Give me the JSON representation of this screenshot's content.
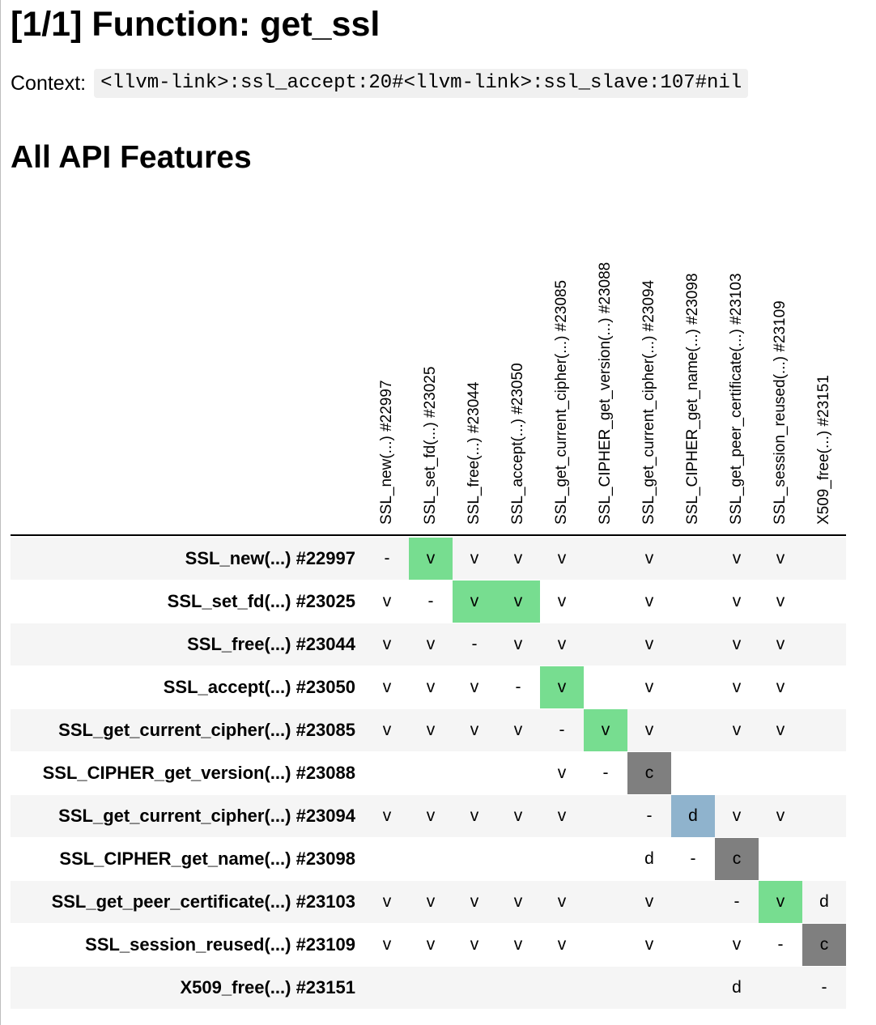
{
  "title": "[1/1] Function: get_ssl",
  "context": {
    "label": "Context:",
    "value": "<llvm-link>:ssl_accept:20#<llvm-link>:ssl_slave:107#nil"
  },
  "section_title": "All API Features",
  "columns": [
    "SSL_new(...) #22997",
    "SSL_set_fd(...) #23025",
    "SSL_free(...) #23044",
    "SSL_accept(...) #23050",
    "SSL_get_current_cipher(...) #23085",
    "SSL_CIPHER_get_version(...) #23088",
    "SSL_get_current_cipher(...) #23094",
    "SSL_CIPHER_get_name(...) #23098",
    "SSL_get_peer_certificate(...) #23103",
    "SSL_session_reused(...) #23109",
    "X509_free(...) #23151"
  ],
  "rows": [
    {
      "label": "SSL_new(...) #22997",
      "cells": [
        "-",
        "v",
        "v",
        "v",
        "v",
        "",
        "v",
        "",
        "v",
        "v",
        ""
      ],
      "highlight": [
        "",
        "green",
        "",
        "",
        "",
        "",
        "",
        "",
        "",
        "",
        ""
      ]
    },
    {
      "label": "SSL_set_fd(...) #23025",
      "cells": [
        "v",
        "-",
        "v",
        "v",
        "v",
        "",
        "v",
        "",
        "v",
        "v",
        ""
      ],
      "highlight": [
        "",
        "",
        "green",
        "green",
        "",
        "",
        "",
        "",
        "",
        "",
        ""
      ]
    },
    {
      "label": "SSL_free(...) #23044",
      "cells": [
        "v",
        "v",
        "-",
        "v",
        "v",
        "",
        "v",
        "",
        "v",
        "v",
        ""
      ],
      "highlight": [
        "",
        "",
        "",
        "",
        "",
        "",
        "",
        "",
        "",
        "",
        ""
      ]
    },
    {
      "label": "SSL_accept(...) #23050",
      "cells": [
        "v",
        "v",
        "v",
        "-",
        "v",
        "",
        "v",
        "",
        "v",
        "v",
        ""
      ],
      "highlight": [
        "",
        "",
        "",
        "",
        "green",
        "",
        "",
        "",
        "",
        "",
        ""
      ]
    },
    {
      "label": "SSL_get_current_cipher(...) #23085",
      "cells": [
        "v",
        "v",
        "v",
        "v",
        "-",
        "v",
        "v",
        "",
        "v",
        "v",
        ""
      ],
      "highlight": [
        "",
        "",
        "",
        "",
        "",
        "green",
        "",
        "",
        "",
        "",
        ""
      ]
    },
    {
      "label": "SSL_CIPHER_get_version(...) #23088",
      "cells": [
        "",
        "",
        "",
        "",
        "v",
        "-",
        "c",
        "",
        "",
        "",
        ""
      ],
      "highlight": [
        "",
        "",
        "",
        "",
        "",
        "",
        "gray",
        "",
        "",
        "",
        ""
      ]
    },
    {
      "label": "SSL_get_current_cipher(...) #23094",
      "cells": [
        "v",
        "v",
        "v",
        "v",
        "v",
        "",
        "-",
        "d",
        "v",
        "v",
        ""
      ],
      "highlight": [
        "",
        "",
        "",
        "",
        "",
        "",
        "",
        "blue",
        "",
        "",
        ""
      ]
    },
    {
      "label": "SSL_CIPHER_get_name(...) #23098",
      "cells": [
        "",
        "",
        "",
        "",
        "",
        "",
        "d",
        "-",
        "c",
        "",
        ""
      ],
      "highlight": [
        "",
        "",
        "",
        "",
        "",
        "",
        "",
        "",
        "gray",
        "",
        ""
      ]
    },
    {
      "label": "SSL_get_peer_certificate(...) #23103",
      "cells": [
        "v",
        "v",
        "v",
        "v",
        "v",
        "",
        "v",
        "",
        "-",
        "v",
        "d"
      ],
      "highlight": [
        "",
        "",
        "",
        "",
        "",
        "",
        "",
        "",
        "",
        "green",
        ""
      ]
    },
    {
      "label": "SSL_session_reused(...) #23109",
      "cells": [
        "v",
        "v",
        "v",
        "v",
        "v",
        "",
        "v",
        "",
        "v",
        "-",
        "c"
      ],
      "highlight": [
        "",
        "",
        "",
        "",
        "",
        "",
        "",
        "",
        "",
        "",
        "gray"
      ]
    },
    {
      "label": "X509_free(...) #23151",
      "cells": [
        "",
        "",
        "",
        "",
        "",
        "",
        "",
        "",
        "d",
        "",
        "-"
      ],
      "highlight": [
        "",
        "",
        "",
        "",
        "",
        "",
        "",
        "",
        "",
        "",
        ""
      ]
    }
  ],
  "colors": {
    "green": "#77dd90",
    "gray": "#7f7f7f",
    "blue": "#8fb3cd",
    "stripe": "#f5f5f5"
  }
}
